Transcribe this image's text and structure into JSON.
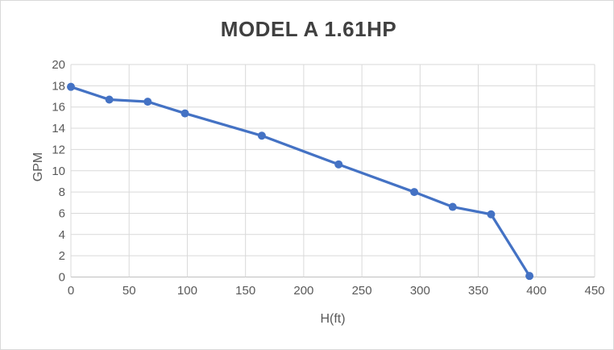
{
  "window": {
    "background": "#FFFFFF",
    "border_color": "#D9D9D9"
  },
  "chart_data": {
    "type": "line",
    "title": "MODEL A 1.61HP",
    "xlabel": "H(ft)",
    "ylabel": "GPM",
    "xlim": [
      0,
      450
    ],
    "ylim": [
      0,
      20
    ],
    "x_ticks": [
      0,
      50,
      100,
      150,
      200,
      250,
      300,
      350,
      400,
      450
    ],
    "y_ticks": [
      0,
      2,
      4,
      6,
      8,
      10,
      12,
      14,
      16,
      18,
      20
    ],
    "grid": true,
    "legend_position": "none",
    "colors": {
      "series": "#4472C4",
      "gridline": "#D9D9D9",
      "axis_line": "#BFBFBF",
      "tick_label": "#595959",
      "title": "#404040"
    },
    "series": [
      {
        "name": "MODEL A 1.61HP",
        "marker": "circle",
        "marker_radius": 5,
        "line_width": 3.25,
        "x": [
          0,
          33,
          66,
          98,
          164,
          230,
          295,
          328,
          361,
          394
        ],
        "y": [
          17.9,
          16.7,
          16.5,
          15.4,
          13.3,
          10.6,
          8.0,
          6.6,
          5.9,
          0.1
        ]
      }
    ]
  }
}
